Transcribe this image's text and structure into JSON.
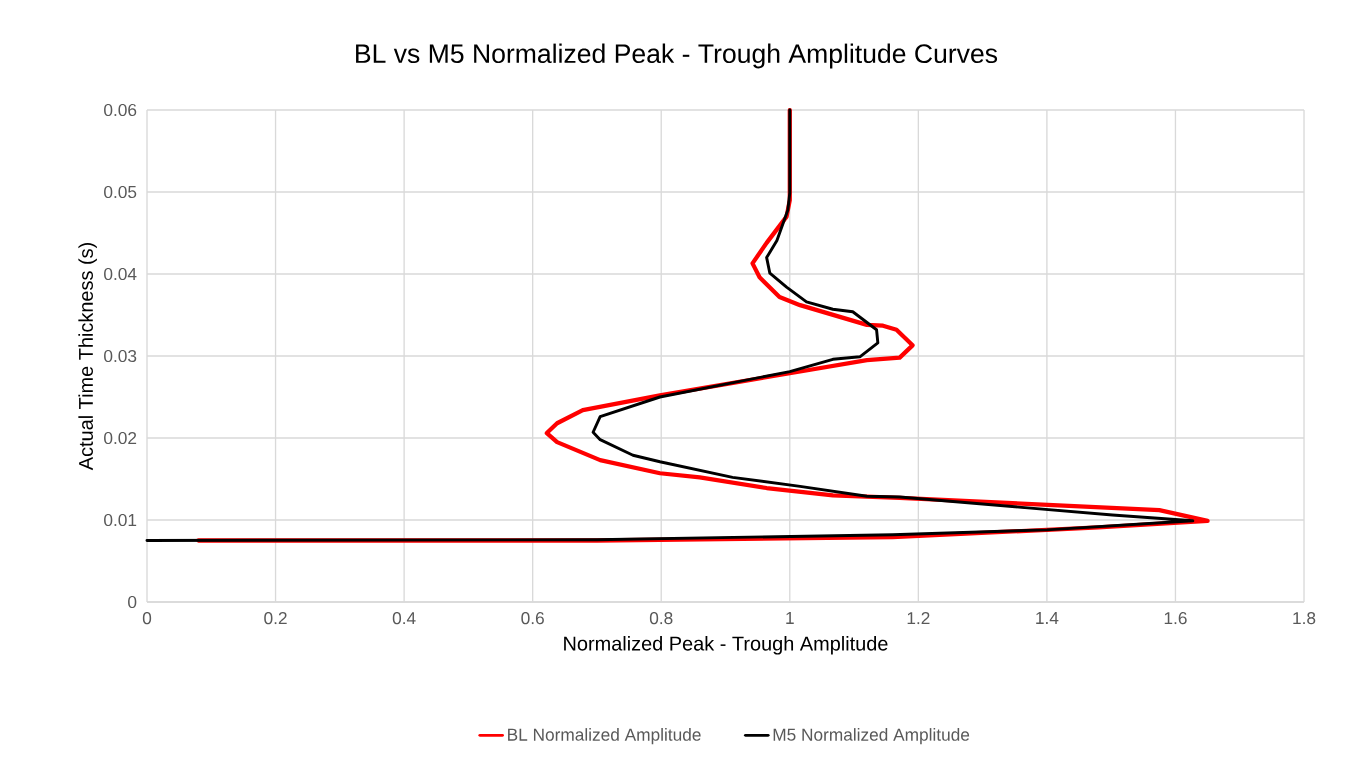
{
  "chart_data": {
    "type": "line",
    "title": "BL vs M5 Normalized Peak - Trough Amplitude Curves",
    "xlabel": "Normalized Peak - Trough Amplitude",
    "ylabel": "Actual Time Thickness (s)",
    "xlim": [
      0,
      1.8
    ],
    "xticks": [
      0,
      0.2,
      0.4,
      0.6,
      0.8,
      1,
      1.2,
      1.4,
      1.6,
      1.8
    ],
    "ylim": [
      0,
      0.06
    ],
    "yticks": [
      0,
      0.01,
      0.02,
      0.03,
      0.04,
      0.05,
      0.06
    ],
    "grid": true,
    "legend": "bottom",
    "marker": "none",
    "line_style": "solid",
    "series": [
      {
        "name": "BL Normalized Amplitude",
        "color": "#ff0000",
        "x": [
          0.08,
          0.7,
          1.16,
          1.48,
          1.65,
          1.575,
          1.171,
          1.067,
          0.964,
          0.86,
          0.798,
          0.705,
          0.638,
          0.622,
          0.638,
          0.678,
          0.798,
          1.0,
          1.12,
          1.171,
          1.191,
          1.166,
          1.145,
          1.12,
          1.016,
          0.984,
          0.953,
          0.942,
          0.964,
          0.995,
          1.0,
          1.0
        ],
        "values": [
          0.0075,
          0.0075,
          0.0079,
          0.0091,
          0.0099,
          0.0112,
          0.0127,
          0.013,
          0.0139,
          0.0152,
          0.0157,
          0.0173,
          0.0195,
          0.0206,
          0.0218,
          0.0234,
          0.0252,
          0.0279,
          0.0295,
          0.0298,
          0.0313,
          0.0332,
          0.0337,
          0.0338,
          0.0362,
          0.0372,
          0.0396,
          0.0413,
          0.0438,
          0.047,
          0.049,
          0.06
        ]
      },
      {
        "name": "M5 Normalized Amplitude",
        "color": "#000000",
        "x": [
          0,
          0.7,
          1.16,
          1.4,
          1.627,
          1.502,
          1.171,
          1.12,
          1.016,
          0.911,
          0.798,
          0.756,
          0.705,
          0.694,
          0.705,
          0.798,
          1.0,
          1.067,
          1.109,
          1.137,
          1.135,
          1.098,
          1.067,
          1.026,
          0.995,
          0.969,
          0.964,
          0.98,
          0.997,
          1.0,
          1.0
        ],
        "values": [
          0.0075,
          0.0076,
          0.0082,
          0.0088,
          0.0099,
          0.0106,
          0.0128,
          0.0129,
          0.0141,
          0.0152,
          0.0171,
          0.0179,
          0.0198,
          0.0207,
          0.0226,
          0.025,
          0.0281,
          0.0296,
          0.0299,
          0.0316,
          0.0332,
          0.0354,
          0.0357,
          0.0366,
          0.0384,
          0.0401,
          0.042,
          0.0441,
          0.0478,
          0.0499,
          0.06
        ]
      }
    ]
  }
}
